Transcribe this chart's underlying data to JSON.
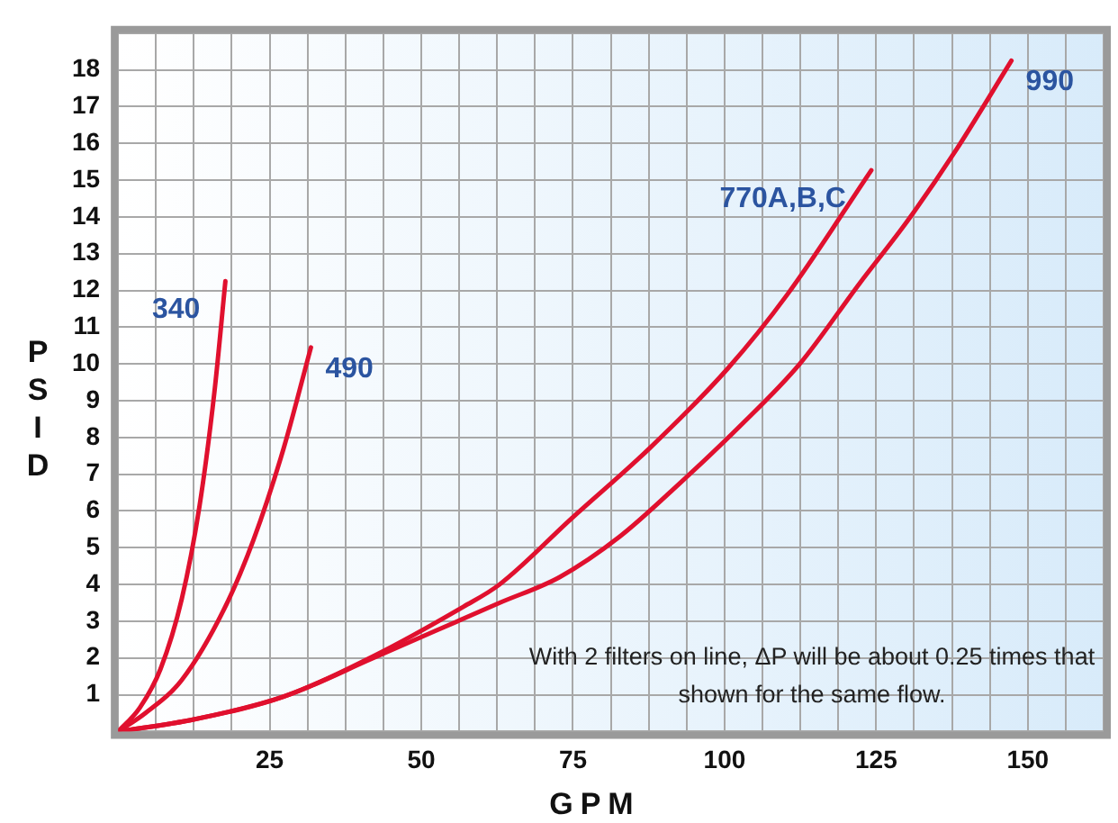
{
  "chart_data": {
    "type": "line",
    "xlabel": "GPM",
    "ylabel": "PSID",
    "xlim": [
      0,
      162.5
    ],
    "ylim": [
      0,
      19
    ],
    "xticks": [
      {
        "value": 0,
        "label": null
      },
      {
        "value": 6.25,
        "label": null
      },
      {
        "value": 12.5,
        "label": null
      },
      {
        "value": 18.75,
        "label": null
      },
      25,
      {
        "value": 31.25,
        "label": null
      },
      {
        "value": 37.5,
        "label": null
      },
      {
        "value": 43.75,
        "label": null
      },
      50,
      {
        "value": 56.25,
        "label": null
      },
      {
        "value": 62.5,
        "label": null
      },
      {
        "value": 68.75,
        "label": null
      },
      75,
      {
        "value": 81.25,
        "label": null
      },
      {
        "value": 87.5,
        "label": null
      },
      {
        "value": 93.75,
        "label": null
      },
      100,
      {
        "value": 106.25,
        "label": null
      },
      {
        "value": 112.5,
        "label": null
      },
      {
        "value": 118.75,
        "label": null
      },
      125,
      {
        "value": 131.25,
        "label": null
      },
      {
        "value": 137.5,
        "label": null
      },
      {
        "value": 143.75,
        "label": null
      },
      150,
      {
        "value": 156.25,
        "label": null
      },
      {
        "value": 162.5,
        "label": null
      }
    ],
    "yticks": [
      {
        "value": 0,
        "label": null
      },
      1,
      2,
      3,
      4,
      5,
      6,
      7,
      8,
      9,
      10,
      11,
      12,
      13,
      14,
      15,
      16,
      17,
      18,
      {
        "value": 19,
        "label": null
      }
    ],
    "grid": true,
    "legend": false,
    "marker": "none",
    "line_style": "solid",
    "series": [
      {
        "name": "340",
        "color": "#e0102e",
        "x": [
          0,
          3.6,
          7.0,
          10.5,
          13.4,
          15.9,
          17.7
        ],
        "values": [
          0,
          0.65,
          1.7,
          3.6,
          6.1,
          9.25,
          12.25
        ]
      },
      {
        "name": "490",
        "color": "#e0102e",
        "x": [
          0,
          4.5,
          10.5,
          17.4,
          22.3,
          27.3,
          31.8
        ],
        "values": [
          0,
          0.5,
          1.4,
          3.3,
          5.2,
          7.7,
          10.45
        ]
      },
      {
        "name": "770A,B,C",
        "color": "#e0102e",
        "x": [
          0,
          12.5,
          27.3,
          42.1,
          57,
          62.9,
          74.8,
          87.6,
          100.5,
          110.4,
          124.2
        ],
        "values": [
          0,
          0.33,
          0.95,
          2.05,
          3.4,
          4.0,
          5.8,
          7.7,
          9.87,
          11.9,
          15.27
        ]
      },
      {
        "name": "990",
        "color": "#e0102e",
        "x": [
          0,
          12.5,
          27.3,
          42.1,
          62.9,
          72.8,
          82.7,
          92.6,
          102.5,
          112.4,
          122.3,
          130.2,
          138.1,
          147.3
        ],
        "values": [
          0,
          0.33,
          0.95,
          2.0,
          3.5,
          4.2,
          5.3,
          6.75,
          8.3,
          10.0,
          12.2,
          13.9,
          15.8,
          18.25
        ]
      }
    ],
    "annotations": [
      "With 2 filters on line, ΔP will be about 0.25 times that shown for the same flow."
    ]
  }
}
